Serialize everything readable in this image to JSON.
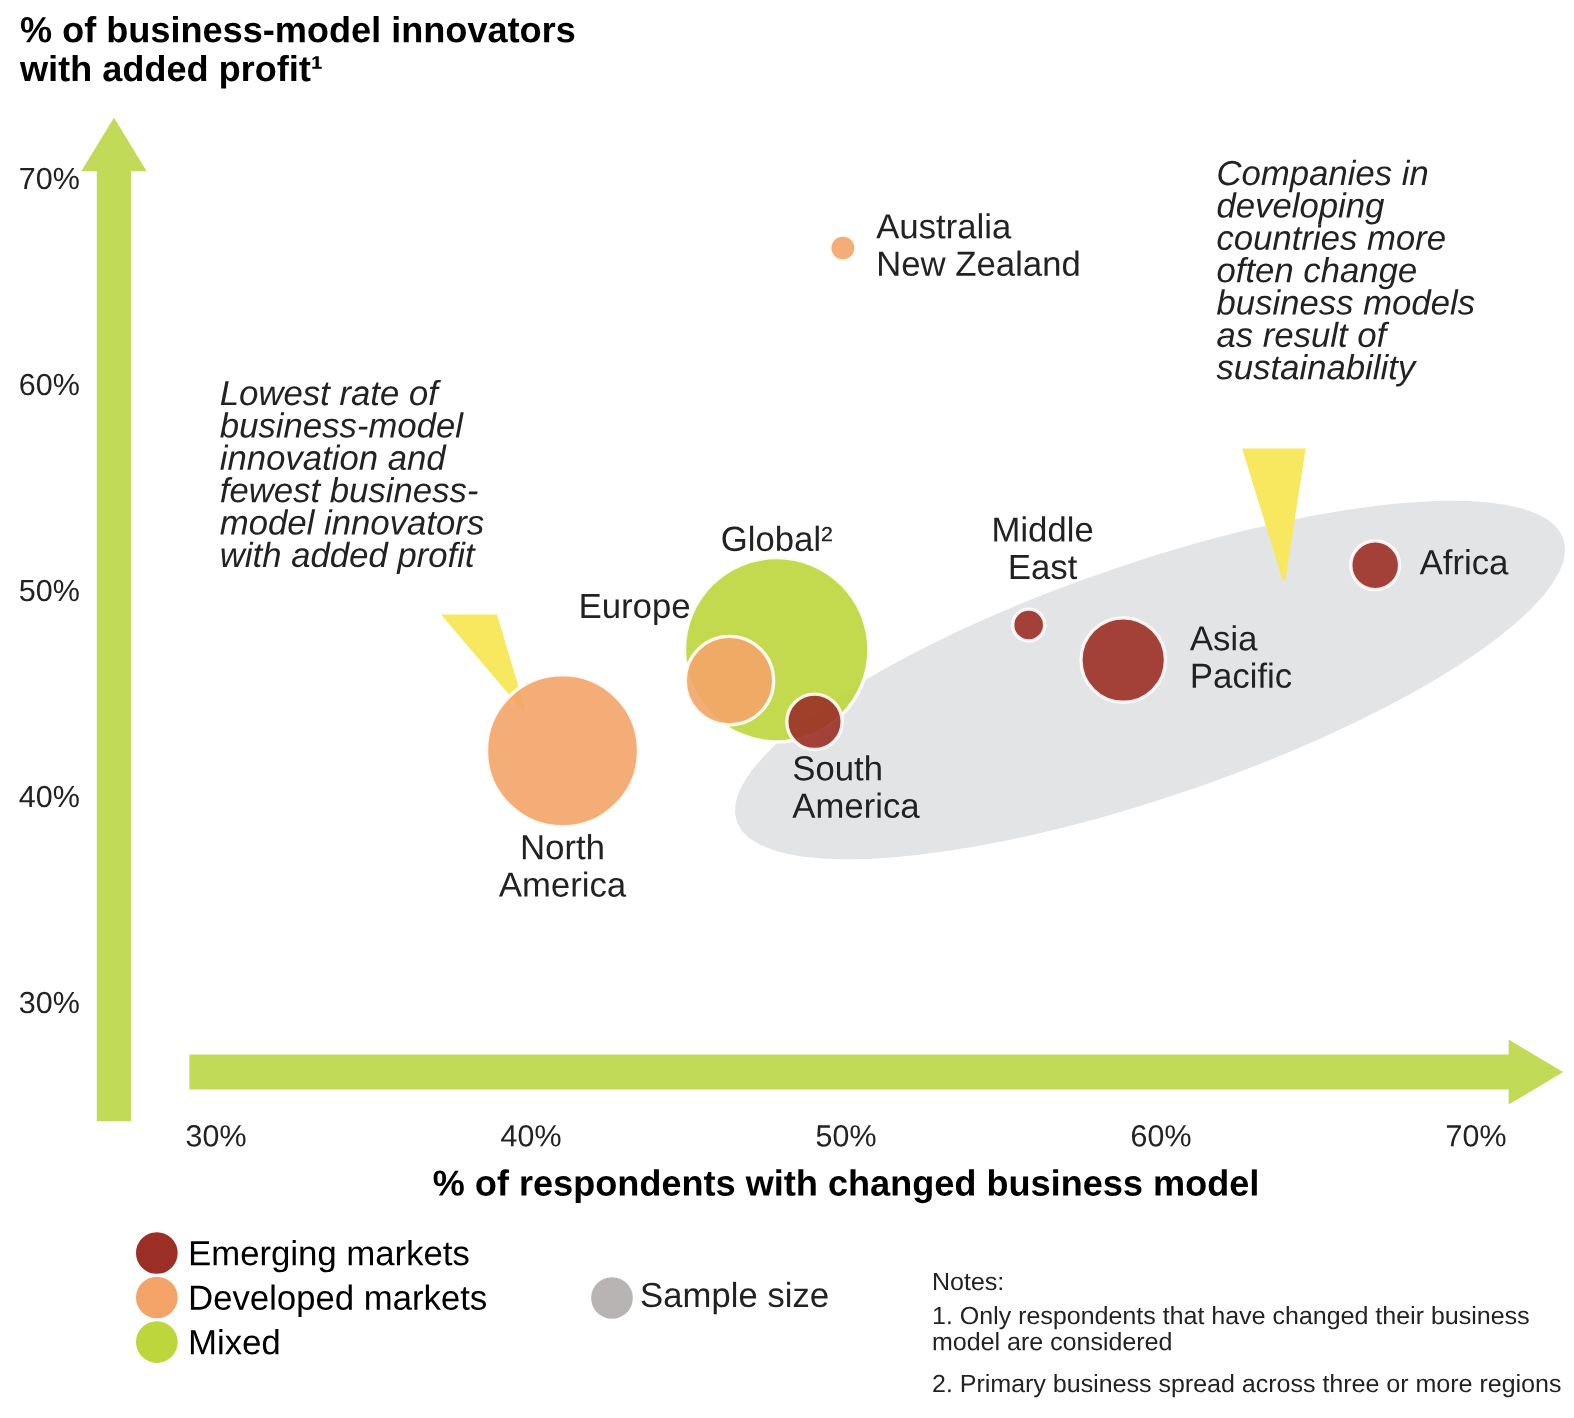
{
  "chart_data": {
    "type": "bubble",
    "ylabel": "% of business-model innovators\nwith added profit¹",
    "xlabel": "% of respondents with changed business model",
    "series": [
      {
        "name": "Emerging markets",
        "color": "#9b2f26",
        "x": [
          49.0,
          55.8,
          58.8,
          66.8
        ],
        "values": [
          43.6,
          48.3,
          46.6,
          51.2
        ],
        "sizes": [
          0.09,
          0.03,
          0.21,
          0.07
        ]
      },
      {
        "name": "Developed markets",
        "color": "#f4a468",
        "x": [
          41.0,
          46.3,
          49.9
        ],
        "values": [
          42.2,
          45.6,
          66.6
        ],
        "sizes": [
          0.68,
          0.23,
          0.02
        ]
      },
      {
        "name": "Mixed",
        "color": "#bcd63c",
        "x": [
          47.8
        ],
        "values": [
          47.1
        ],
        "sizes": [
          1
        ]
      }
    ],
    "annotations": [
      "Lowest rate of\nbusiness-model\ninnovation and\nfewest business-\nmodel innovators\nwith added profit",
      "Companies in\ndeveloping\ncountries more\noften change\nbusiness models\nas result of\nsustainability",
      "Sample size",
      "Notes:",
      "1. Only respondents that have changed their business\nmodel are considered",
      "2. Primary business spread across three or more regions",
      {
        "text": "North\nAmerica",
        "x": 41.0,
        "y": 42.2
      },
      {
        "text": "Europe",
        "x": 46.3,
        "y": 45.6
      },
      {
        "text": "Global²",
        "x": 47.8,
        "y": 47.1
      },
      {
        "text": "South\nAmerica",
        "x": 49.0,
        "y": 43.6
      },
      {
        "text": "Australia\nNew Zealand",
        "x": 49.9,
        "y": 66.6
      },
      {
        "text": "Middle\nEast",
        "x": 55.8,
        "y": 48.3
      },
      {
        "text": "Asia\nPacific",
        "x": 58.8,
        "y": 46.6
      },
      {
        "text": "Africa",
        "x": 66.8,
        "y": 51.2
      }
    ],
    "xlim": [
      30,
      70
    ],
    "ylim": [
      30,
      70
    ],
    "xticks": [
      {
        "value": 30,
        "label": "30%"
      },
      {
        "value": 40,
        "label": "40%"
      },
      {
        "value": 50,
        "label": "50%"
      },
      {
        "value": 60,
        "label": "60%"
      },
      {
        "value": 70,
        "label": "70%"
      }
    ],
    "yticks": [
      {
        "value": 30,
        "label": "30%"
      },
      {
        "value": 40,
        "label": "40%"
      },
      {
        "value": 50,
        "label": "50%"
      },
      {
        "value": 60,
        "label": "60%"
      },
      {
        "value": 70,
        "label": "70%"
      }
    ],
    "grid": false,
    "legend": "bottom left",
    "marker": "circle"
  }
}
